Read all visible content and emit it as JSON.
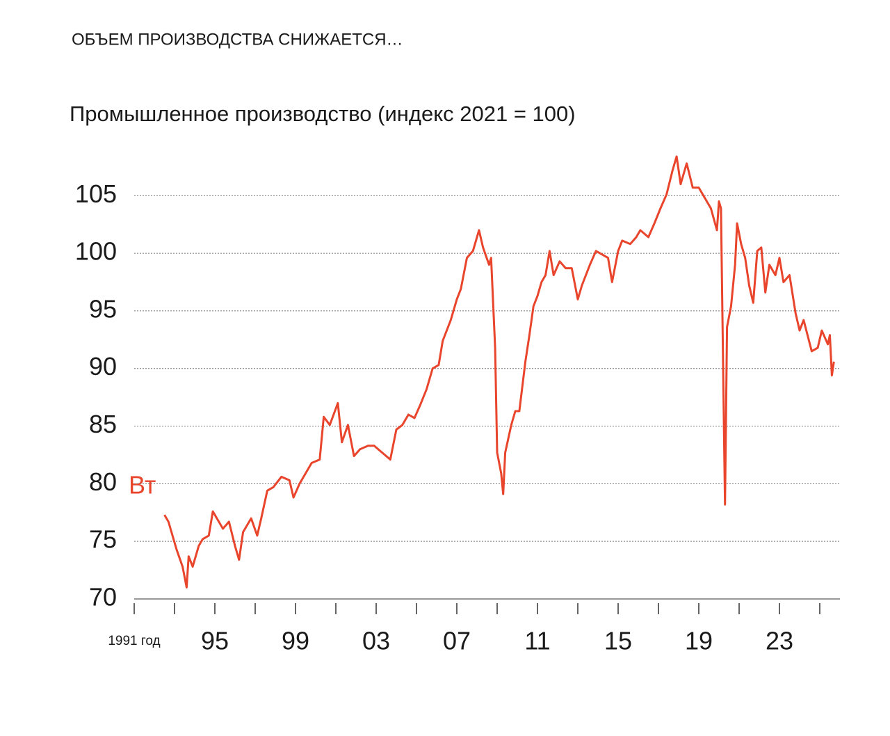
{
  "chart_data": {
    "type": "line",
    "title": "ОБЪЕМ ПРОИЗВОДСТВА СНИЖАЕТСЯ…",
    "subtitle": "Промышленное производство (индекс 2021 = 100)",
    "annotation": "Вт",
    "color": "#e8452c",
    "grid": true,
    "ylim": [
      70,
      109
    ],
    "yticks": [
      70,
      75,
      80,
      85,
      90,
      95,
      100,
      105
    ],
    "xlim": [
      1991,
      2026
    ],
    "xticks": [
      {
        "value": 1991,
        "label": "1991 год"
      },
      {
        "value": 1995,
        "label": "95"
      },
      {
        "value": 1999,
        "label": "99"
      },
      {
        "value": 2003,
        "label": "03"
      },
      {
        "value": 2007,
        "label": "07"
      },
      {
        "value": 2011,
        "label": "11"
      },
      {
        "value": 2015,
        "label": "15"
      },
      {
        "value": 2019,
        "label": "19"
      },
      {
        "value": 2023,
        "label": "23"
      }
    ],
    "xminorticks": [
      1993,
      1997,
      2001,
      2005,
      2009,
      2013,
      2017,
      2021,
      2025
    ],
    "x": [
      1992.5,
      1992.7,
      1993.1,
      1993.4,
      1993.6,
      1993.7,
      1993.9,
      1994.2,
      1994.4,
      1994.7,
      1994.9,
      1995.1,
      1995.4,
      1995.7,
      1996.0,
      1996.2,
      1996.4,
      1996.8,
      1997.1,
      1997.3,
      1997.6,
      1997.9,
      1998.3,
      1998.7,
      1998.9,
      1999.2,
      1999.5,
      1999.8,
      2000.2,
      2000.4,
      2000.7,
      2001.1,
      2001.3,
      2001.6,
      2001.9,
      2002.2,
      2002.6,
      2002.9,
      2003.1,
      2003.5,
      2003.7,
      2004.0,
      2004.3,
      2004.6,
      2004.9,
      2005.2,
      2005.5,
      2005.8,
      2006.1,
      2006.3,
      2006.7,
      2007.0,
      2007.2,
      2007.5,
      2007.8,
      2008.1,
      2008.3,
      2008.6,
      2008.7,
      2008.9,
      2009.0,
      2009.2,
      2009.3,
      2009.4,
      2009.7,
      2009.9,
      2010.1,
      2010.4,
      2010.6,
      2010.8,
      2011.0,
      2011.2,
      2011.4,
      2011.6,
      2011.8,
      2012.1,
      2012.4,
      2012.7,
      2013.0,
      2013.2,
      2013.6,
      2013.9,
      2014.2,
      2014.5,
      2014.7,
      2015.0,
      2015.2,
      2015.6,
      2015.9,
      2016.1,
      2016.5,
      2016.8,
      2017.1,
      2017.4,
      2017.7,
      2017.9,
      2018.1,
      2018.4,
      2018.7,
      2019.0,
      2019.3,
      2019.6,
      2019.9,
      2020.0,
      2020.1,
      2020.3,
      2020.4,
      2020.6,
      2020.8,
      2020.9,
      2021.1,
      2021.3,
      2021.5,
      2021.7,
      2021.9,
      2022.1,
      2022.3,
      2022.5,
      2022.8,
      2023.0,
      2023.2,
      2023.5,
      2023.8,
      2024.0,
      2024.2,
      2024.6,
      2024.9,
      2025.1,
      2025.4,
      2025.5,
      2025.6,
      2025.7
    ],
    "values": [
      77.3,
      76.7,
      74.3,
      72.8,
      71.0,
      73.7,
      72.8,
      74.6,
      75.2,
      75.5,
      77.6,
      77.0,
      76.1,
      76.7,
      74.6,
      73.4,
      75.8,
      77.0,
      75.5,
      77.0,
      79.4,
      79.7,
      80.6,
      80.3,
      78.8,
      80.0,
      80.9,
      81.8,
      82.1,
      85.8,
      85.1,
      87.0,
      83.6,
      85.1,
      82.4,
      83.0,
      83.3,
      83.3,
      83.0,
      82.4,
      82.1,
      84.7,
      85.1,
      86.0,
      85.7,
      86.9,
      88.2,
      90.0,
      90.3,
      92.4,
      94.2,
      96.0,
      96.9,
      99.6,
      100.2,
      102.0,
      100.5,
      99.0,
      99.6,
      91.8,
      82.7,
      80.9,
      79.1,
      82.7,
      85.1,
      86.3,
      86.3,
      90.6,
      92.9,
      95.4,
      96.3,
      97.5,
      98.1,
      100.2,
      98.1,
      99.3,
      98.7,
      98.7,
      96.0,
      97.2,
      99.0,
      100.2,
      99.9,
      99.6,
      97.5,
      100.2,
      101.1,
      100.8,
      101.4,
      102.0,
      101.4,
      102.6,
      103.9,
      105.1,
      107.2,
      108.4,
      106.0,
      107.8,
      105.7,
      105.7,
      104.8,
      103.9,
      102.0,
      104.5,
      103.9,
      78.2,
      93.6,
      95.4,
      99.0,
      102.6,
      100.8,
      99.6,
      97.2,
      95.7,
      100.2,
      100.5,
      96.6,
      99.0,
      98.1,
      99.6,
      97.5,
      98.1,
      94.8,
      93.3,
      94.2,
      91.5,
      91.8,
      93.3,
      92.1,
      92.9,
      89.4,
      90.6
    ]
  }
}
